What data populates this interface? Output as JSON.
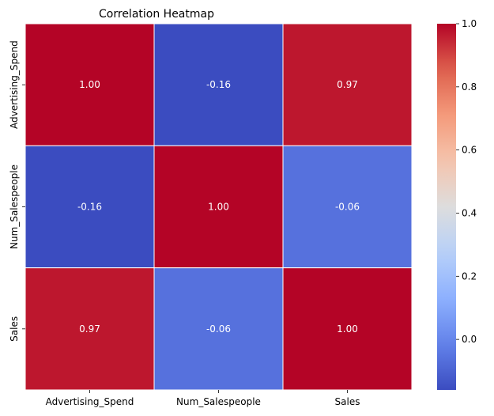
{
  "chart_data": {
    "type": "heatmap",
    "title": "Correlation Heatmap",
    "xlabel": "",
    "ylabel": "",
    "x_categories": [
      "Advertising_Spend",
      "Num_Salespeople",
      "Sales"
    ],
    "y_categories": [
      "Advertising_Spend",
      "Num_Salespeople",
      "Sales"
    ],
    "values": [
      [
        1.0,
        -0.16,
        0.97
      ],
      [
        -0.16,
        1.0,
        -0.06
      ],
      [
        0.97,
        -0.06,
        1.0
      ]
    ],
    "cell_labels": [
      [
        "1.00",
        "-0.16",
        "0.97"
      ],
      [
        "-0.16",
        "1.00",
        "-0.06"
      ],
      [
        "0.97",
        "-0.06",
        "1.00"
      ]
    ],
    "colorbar": {
      "colormap": "coolwarm",
      "vmin": -0.16,
      "vmax": 1.0,
      "ticks": [
        0.0,
        0.2,
        0.4,
        0.6,
        0.8,
        1.0
      ],
      "tick_labels": [
        "0.0",
        "0.2",
        "0.4",
        "0.6",
        "0.8",
        "1.0"
      ]
    },
    "grid": true,
    "cell_text_color": "#ffffff"
  }
}
